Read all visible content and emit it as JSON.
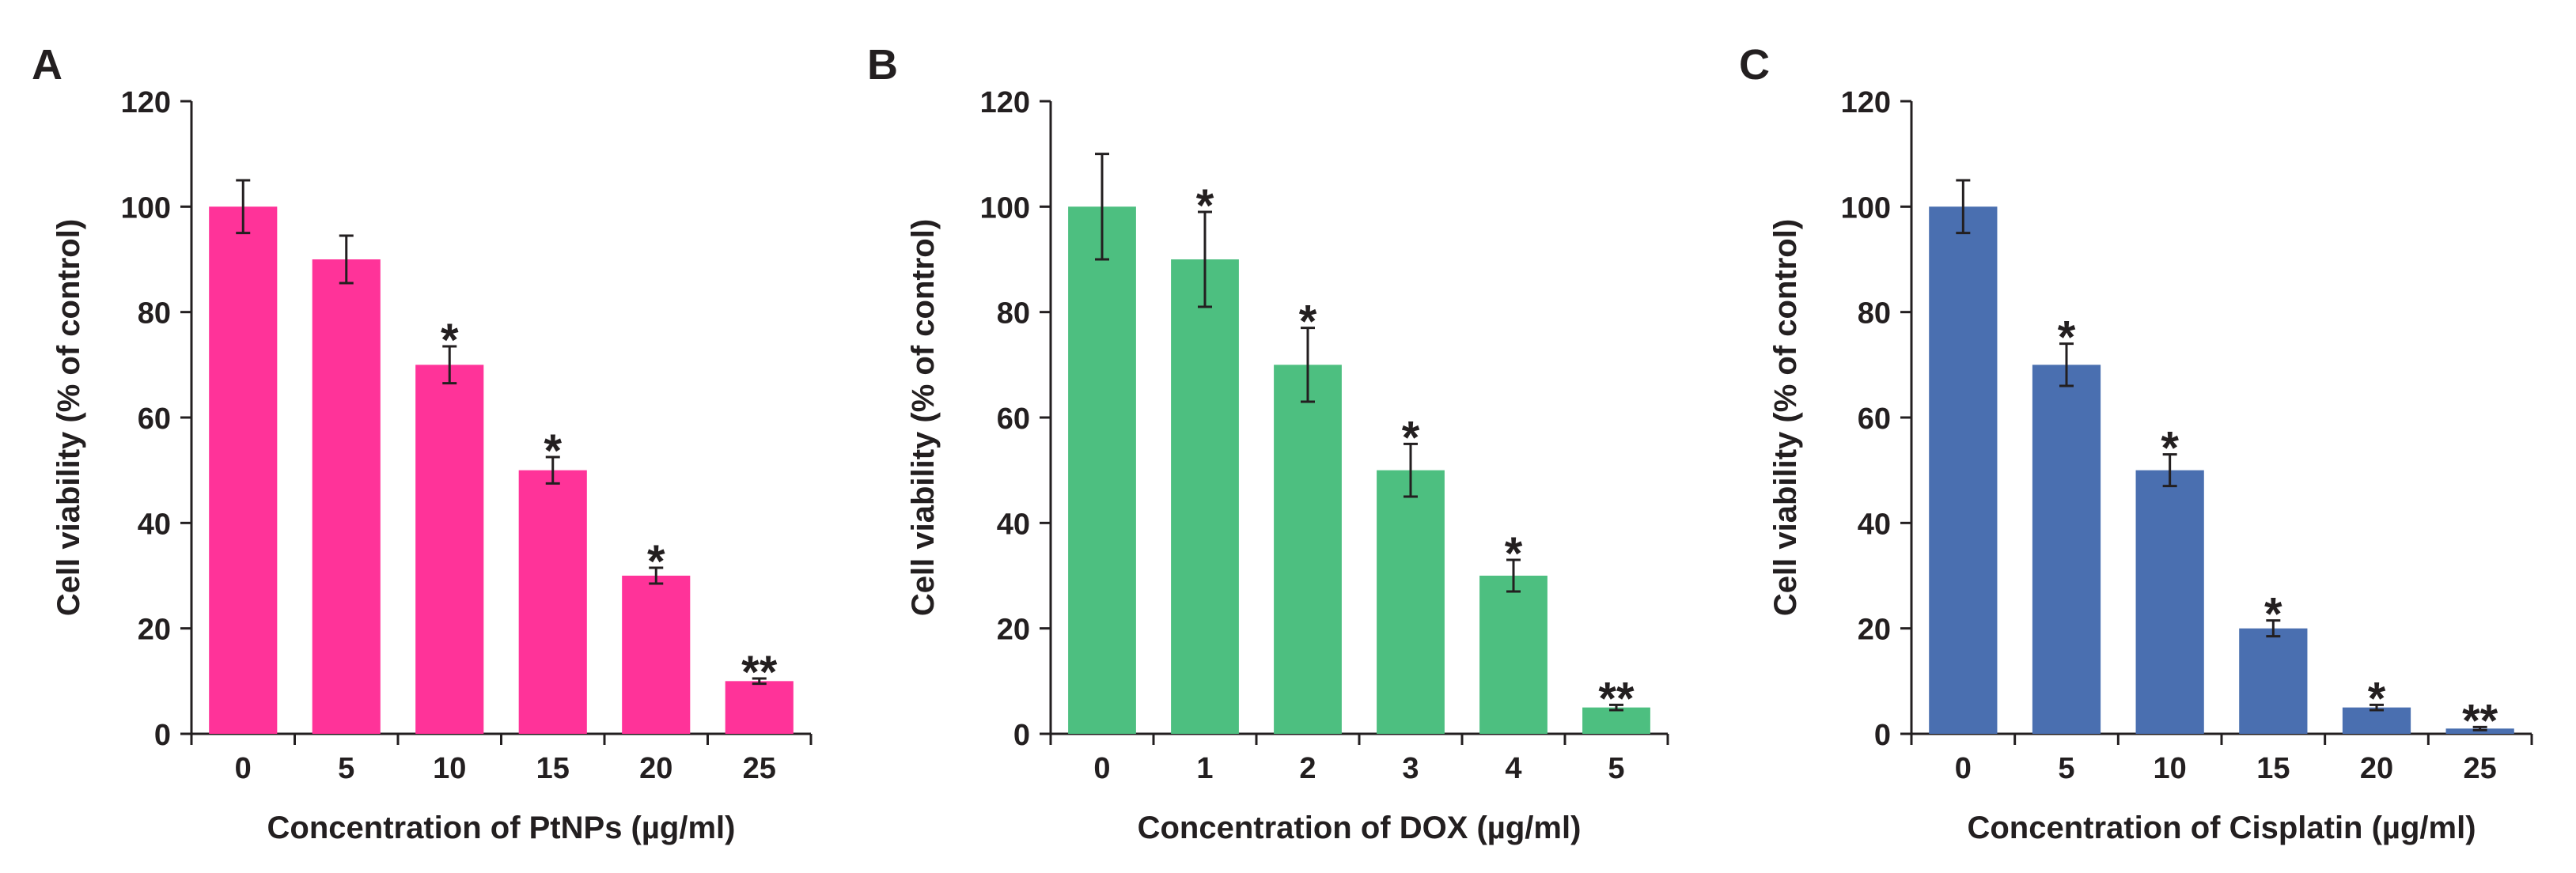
{
  "chart_data": [
    {
      "type": "bar",
      "panel_label": "A",
      "title": "",
      "xlabel": "Concentration of PtNPs (µg/ml)",
      "ylabel": "Cell viability (% of control)",
      "categories": [
        "0",
        "5",
        "10",
        "15",
        "20",
        "25"
      ],
      "values": [
        100,
        90,
        70,
        50,
        30,
        10
      ],
      "errors": [
        5,
        4.5,
        3.5,
        2.5,
        1.5,
        0.5
      ],
      "annotations": [
        "",
        "",
        "*",
        "*",
        "*",
        "**"
      ],
      "ylim": [
        0,
        120
      ],
      "yticks": [
        "0",
        "20",
        "40",
        "60",
        "80",
        "100",
        "120"
      ],
      "color": "#ff3399"
    },
    {
      "type": "bar",
      "panel_label": "B",
      "title": "",
      "xlabel": "Concentration of DOX (µg/ml)",
      "ylabel": "Cell viability (% of control)",
      "categories": [
        "0",
        "1",
        "2",
        "3",
        "4",
        "5"
      ],
      "values": [
        100,
        90,
        70,
        50,
        30,
        5
      ],
      "errors": [
        10,
        9,
        7,
        5,
        3,
        0.5
      ],
      "annotations": [
        "",
        "*",
        "*",
        "*",
        "*",
        "**"
      ],
      "ylim": [
        0,
        120
      ],
      "yticks": [
        "0",
        "20",
        "40",
        "60",
        "80",
        "100",
        "120"
      ],
      "color": "#4dbf80"
    },
    {
      "type": "bar",
      "panel_label": "C",
      "title": "",
      "xlabel": "Concentration of Cisplatin (µg/ml)",
      "ylabel": "Cell viability (% of control)",
      "categories": [
        "0",
        "5",
        "10",
        "15",
        "20",
        "25"
      ],
      "values": [
        100,
        70,
        50,
        20,
        5,
        1
      ],
      "errors": [
        5,
        4,
        3,
        1.5,
        0.5,
        0.3
      ],
      "annotations": [
        "",
        "*",
        "*",
        "*",
        "*",
        "**"
      ],
      "ylim": [
        0,
        120
      ],
      "yticks": [
        "0",
        "20",
        "40",
        "60",
        "80",
        "100",
        "120"
      ],
      "color": "#4a6fb0"
    }
  ]
}
